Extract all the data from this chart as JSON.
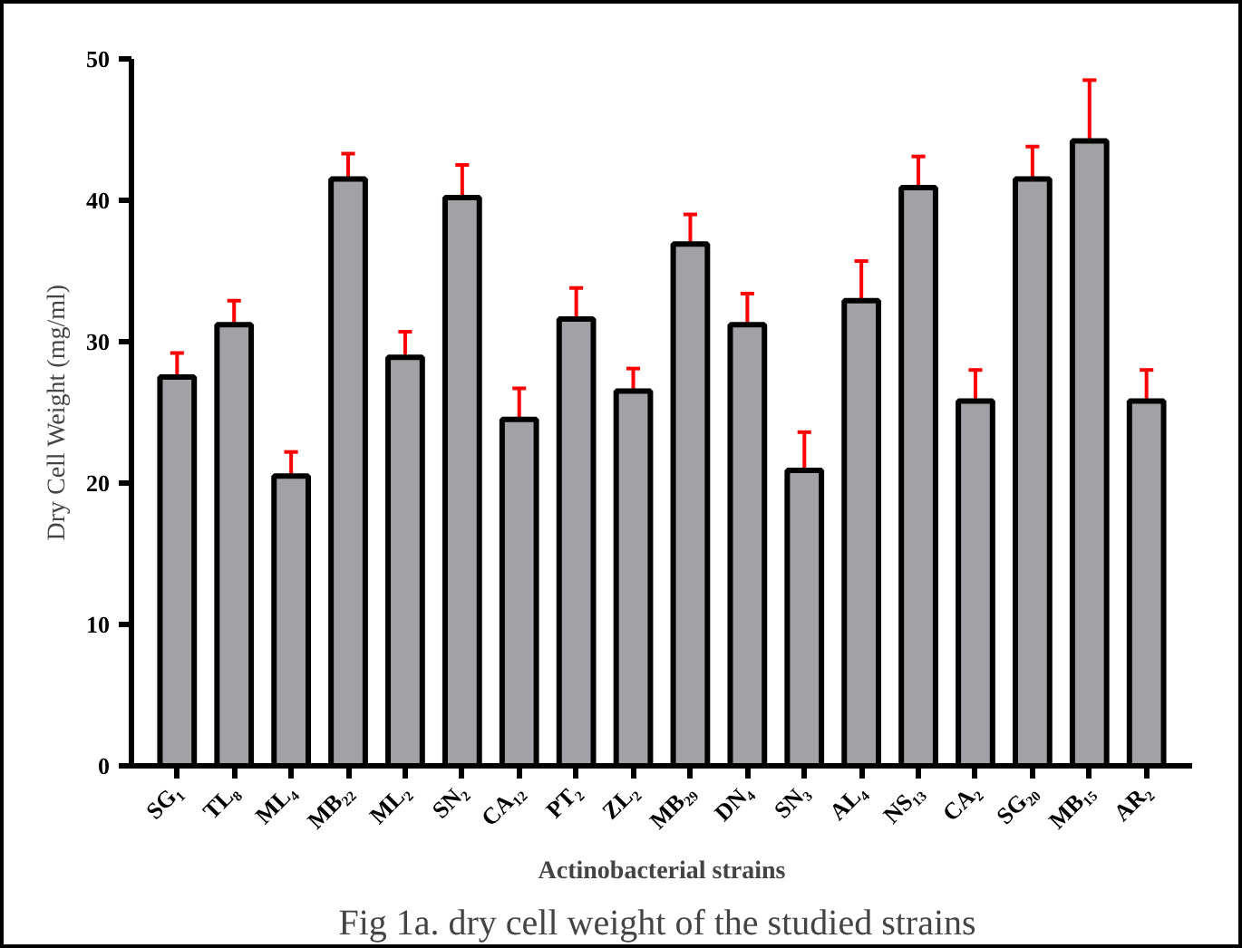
{
  "chart_data": {
    "type": "bar",
    "xlabel": "Actinobacterial strains",
    "ylabel": "Dry Cell Weight (mg/ml)",
    "categories": [
      "SG₁",
      "TL₈",
      "ML₄",
      "MB₂₂",
      "ML₂",
      "SN₂",
      "CA₁₂",
      "PT₂",
      "ZL₂",
      "MB₂₉",
      "DN₄",
      "SN₃",
      "AL₄",
      "NS₁₃",
      "CA₂",
      "SG₂₀",
      "MB₁₅",
      "AR₂"
    ],
    "values": [
      27.5,
      31.2,
      20.5,
      41.5,
      28.9,
      40.2,
      24.5,
      31.6,
      26.5,
      36.9,
      31.2,
      20.9,
      32.9,
      40.9,
      25.8,
      41.5,
      44.2,
      25.8
    ],
    "errors": [
      1.7,
      1.7,
      1.7,
      1.8,
      1.8,
      2.3,
      2.2,
      2.2,
      1.6,
      2.1,
      2.2,
      2.7,
      2.8,
      2.2,
      2.2,
      2.3,
      4.3,
      2.2
    ],
    "color": "#a2a1a6",
    "ylim": [
      0,
      50
    ],
    "yticks": [
      0,
      10,
      20,
      30,
      40,
      50
    ],
    "grid": false,
    "annotations": [
      "Fig 1a. dry cell weight  of the studied strains"
    ]
  }
}
